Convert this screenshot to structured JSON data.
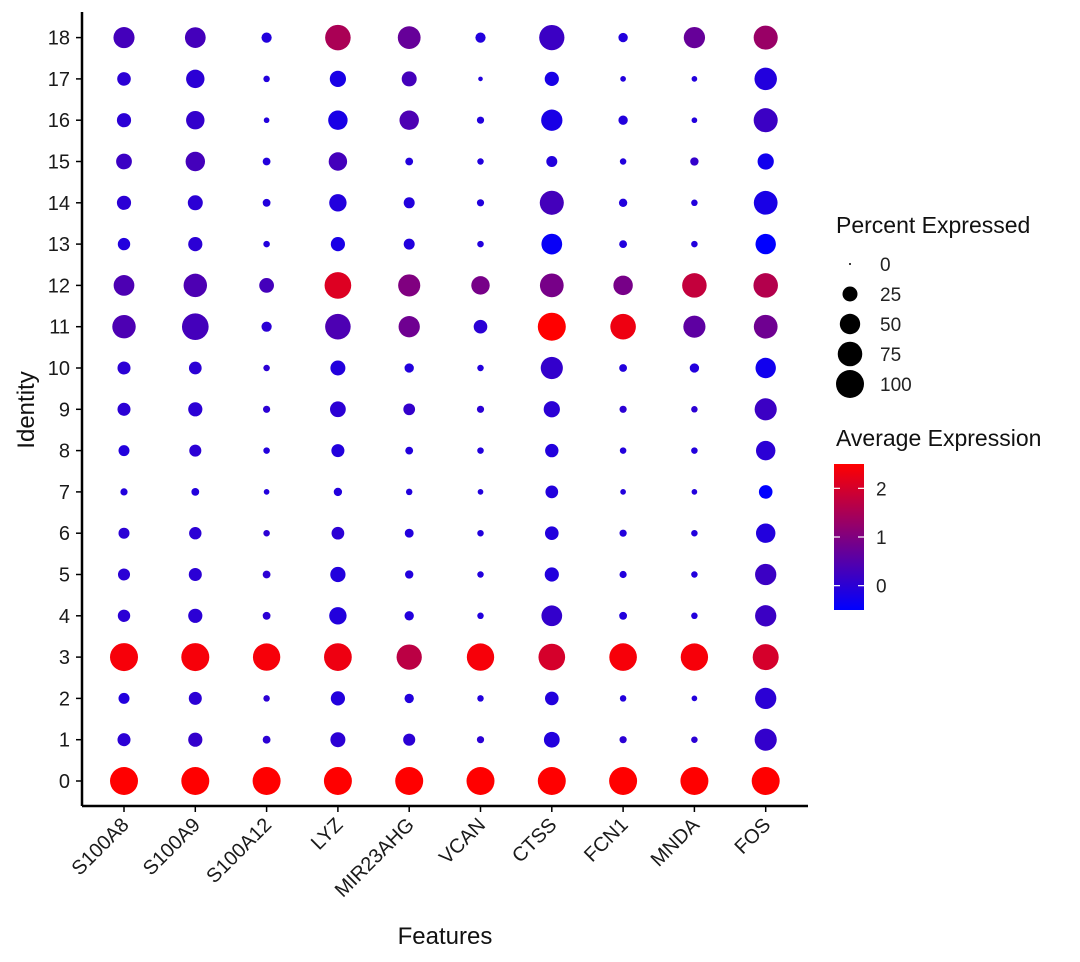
{
  "chart_data": {
    "type": "dot",
    "xlabel": "Features",
    "ylabel": "Identity",
    "features": [
      "S100A8",
      "S100A9",
      "S100A12",
      "LYZ",
      "MIR23AHG",
      "VCAN",
      "CTSS",
      "FCN1",
      "MNDA",
      "FOS"
    ],
    "identities": [
      "0",
      "1",
      "2",
      "3",
      "4",
      "5",
      "6",
      "7",
      "8",
      "9",
      "10",
      "11",
      "12",
      "13",
      "14",
      "15",
      "16",
      "17",
      "18"
    ],
    "size_legend": {
      "title": "Percent Expressed",
      "breaks": [
        0,
        25,
        50,
        75,
        100
      ],
      "labels": [
        "0",
        "25",
        "50",
        "75",
        "100"
      ]
    },
    "color_legend": {
      "title": "Average Expression",
      "breaks": [
        0,
        1,
        2
      ],
      "labels": [
        "0",
        "1",
        "2"
      ],
      "range": [
        -0.5,
        2.5
      ],
      "low_color": "#0000FF",
      "high_color": "#FF0000"
    },
    "percent_expressed": [
      [
        100,
        100,
        100,
        100,
        100,
        100,
        100,
        100,
        100,
        100
      ],
      [
        18,
        22,
        5,
        25,
        15,
        4,
        28,
        4,
        3,
        60
      ],
      [
        12,
        18,
        3,
        22,
        8,
        3,
        20,
        3,
        2,
        55
      ],
      [
        100,
        100,
        95,
        98,
        80,
        95,
        90,
        97,
        95,
        85
      ],
      [
        16,
        22,
        5,
        35,
        8,
        3,
        52,
        5,
        3,
        55
      ],
      [
        15,
        18,
        5,
        26,
        6,
        3,
        22,
        4,
        3,
        55
      ],
      [
        12,
        16,
        3,
        17,
        7,
        3,
        20,
        4,
        3,
        45
      ],
      [
        4,
        5,
        2,
        6,
        3,
        2,
        17,
        2,
        2,
        20
      ],
      [
        12,
        15,
        3,
        18,
        5,
        3,
        19,
        3,
        3,
        45
      ],
      [
        18,
        22,
        4,
        28,
        14,
        4,
        30,
        4,
        3,
        60
      ],
      [
        18,
        17,
        3,
        25,
        8,
        3,
        60,
        5,
        8,
        50
      ],
      [
        68,
        90,
        10,
        82,
        55,
        20,
        100,
        82,
        60,
        70
      ],
      [
        52,
        68,
        24,
        90,
        60,
        40,
        70,
        45,
        75,
        75
      ],
      [
        16,
        22,
        3,
        22,
        12,
        3,
        52,
        5,
        3,
        50
      ],
      [
        22,
        25,
        5,
        35,
        12,
        4,
        72,
        6,
        3,
        70
      ],
      [
        28,
        45,
        5,
        40,
        5,
        3,
        12,
        3,
        6,
        30
      ],
      [
        22,
        40,
        2,
        45,
        45,
        4,
        55,
        8,
        2,
        72
      ],
      [
        20,
        40,
        3,
        30,
        25,
        1,
        22,
        2,
        2,
        62
      ],
      [
        54,
        52,
        10,
        82,
        64,
        10,
        80,
        8,
        55,
        72
      ]
    ],
    "average_expression": [
      [
        2.5,
        2.5,
        2.5,
        2.5,
        2.5,
        2.5,
        2.5,
        2.5,
        2.5,
        2.5
      ],
      [
        0.0,
        0.1,
        0.0,
        0.0,
        0.0,
        0.0,
        -0.1,
        0.0,
        0.0,
        0.1
      ],
      [
        -0.1,
        0.0,
        0.0,
        -0.1,
        -0.1,
        -0.1,
        -0.1,
        -0.1,
        -0.1,
        0.0
      ],
      [
        2.4,
        2.4,
        2.4,
        2.3,
        1.7,
        2.4,
        2.0,
        2.4,
        2.4,
        2.0
      ],
      [
        0.0,
        0.0,
        0.0,
        -0.1,
        -0.1,
        -0.1,
        0.1,
        -0.1,
        -0.1,
        0.2
      ],
      [
        0.0,
        0.0,
        0.0,
        -0.1,
        -0.1,
        -0.1,
        -0.1,
        -0.1,
        -0.1,
        0.2
      ],
      [
        0.0,
        0.0,
        0.0,
        0.0,
        -0.1,
        -0.1,
        -0.1,
        -0.1,
        -0.1,
        -0.1
      ],
      [
        -0.1,
        -0.1,
        -0.1,
        -0.1,
        -0.1,
        -0.1,
        -0.1,
        -0.1,
        -0.1,
        -0.5
      ],
      [
        -0.1,
        0.0,
        -0.1,
        -0.1,
        -0.1,
        -0.1,
        -0.1,
        -0.1,
        -0.1,
        0.0
      ],
      [
        0.0,
        0.0,
        0.0,
        0.0,
        0.1,
        0.0,
        0.0,
        0.0,
        0.0,
        0.2
      ],
      [
        0.0,
        0.0,
        0.0,
        -0.1,
        -0.1,
        -0.1,
        0.1,
        -0.1,
        -0.1,
        -0.3
      ],
      [
        0.4,
        0.3,
        0.0,
        0.4,
        0.8,
        0.0,
        2.5,
        2.3,
        0.6,
        0.8
      ],
      [
        0.4,
        0.4,
        0.3,
        2.1,
        1.0,
        0.9,
        0.9,
        0.9,
        1.8,
        1.6
      ],
      [
        -0.1,
        0.0,
        -0.1,
        -0.2,
        -0.1,
        -0.1,
        -0.4,
        -0.1,
        -0.1,
        -0.6
      ],
      [
        0.0,
        0.0,
        -0.1,
        -0.1,
        -0.1,
        -0.1,
        0.3,
        -0.1,
        -0.1,
        -0.2
      ],
      [
        0.2,
        0.3,
        -0.1,
        0.3,
        -0.1,
        -0.1,
        -0.1,
        -0.1,
        0.1,
        -0.3
      ],
      [
        0.0,
        0.1,
        -0.1,
        -0.2,
        0.4,
        -0.1,
        -0.2,
        -0.1,
        -0.1,
        0.2
      ],
      [
        0.0,
        0.0,
        -0.1,
        -0.2,
        0.3,
        -0.1,
        -0.2,
        -0.1,
        -0.1,
        -0.1
      ],
      [
        0.3,
        0.3,
        -0.1,
        1.5,
        0.7,
        -0.1,
        0.2,
        -0.1,
        0.7,
        1.3
      ]
    ]
  }
}
